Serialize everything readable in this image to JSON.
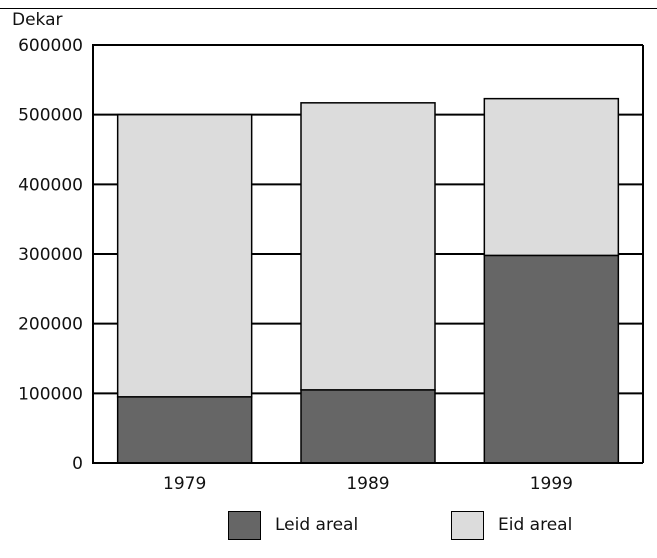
{
  "chart_data": {
    "type": "bar",
    "stacked": true,
    "ylabel": "Dekar",
    "categories": [
      "1979",
      "1989",
      "1999"
    ],
    "yticks": [
      "0",
      "100000",
      "200000",
      "300000",
      "400000",
      "500000",
      "600000"
    ],
    "ylim": [
      0,
      600000
    ],
    "grid": true,
    "legend_position": "bottom",
    "series": [
      {
        "name": "Leid areal",
        "values": [
          95000,
          105000,
          298000
        ],
        "color": "#666666"
      },
      {
        "name": "Eid areal",
        "values": [
          405000,
          412000,
          225000
        ],
        "color": "#dcdcdc"
      }
    ]
  }
}
